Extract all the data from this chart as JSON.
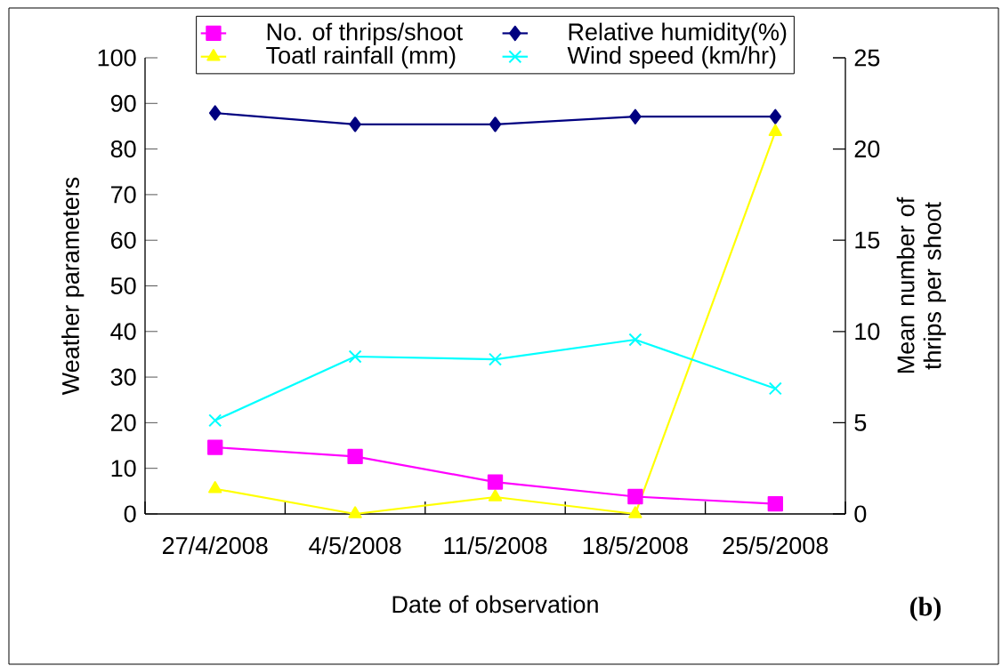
{
  "chart_data": {
    "type": "line",
    "xlabel": "Date of observation",
    "ylabel": "Weather parameters",
    "y2label": "Mean number of thrips per shoot",
    "categories": [
      "27/4/2008",
      "4/5/2008",
      "11/5/2008",
      "18/5/2008",
      "25/5/2008"
    ],
    "series": [
      {
        "name": "No. of thrips/shoot",
        "color": "#ff00ff",
        "marker": "square",
        "axis": "y2",
        "values": [
          3.65,
          3.15,
          1.75,
          0.95,
          0.55
        ]
      },
      {
        "name": "Relative humidity(%)",
        "color": "#000080",
        "marker": "diamond",
        "values": [
          87.9,
          85.4,
          85.4,
          87.1,
          87.1
        ]
      },
      {
        "name": "Toatl rainfall (mm)",
        "color": "#ffff00",
        "marker": "triangle",
        "values": [
          5.5,
          0,
          3.7,
          0,
          83.8
        ]
      },
      {
        "name": "Wind speed (km/hr)",
        "color": "#00ffff",
        "marker": "cross",
        "values": [
          20.5,
          34.5,
          33.9,
          38.2,
          27.5
        ]
      }
    ],
    "ylim": [
      0,
      100
    ],
    "yticks": [
      0,
      10,
      20,
      30,
      40,
      50,
      60,
      70,
      80,
      90,
      100
    ],
    "y2lim": [
      0,
      25
    ],
    "y2ticks": [
      0,
      5,
      10,
      15,
      20,
      25
    ],
    "legend": "top",
    "annotations": [
      "(b)"
    ]
  }
}
